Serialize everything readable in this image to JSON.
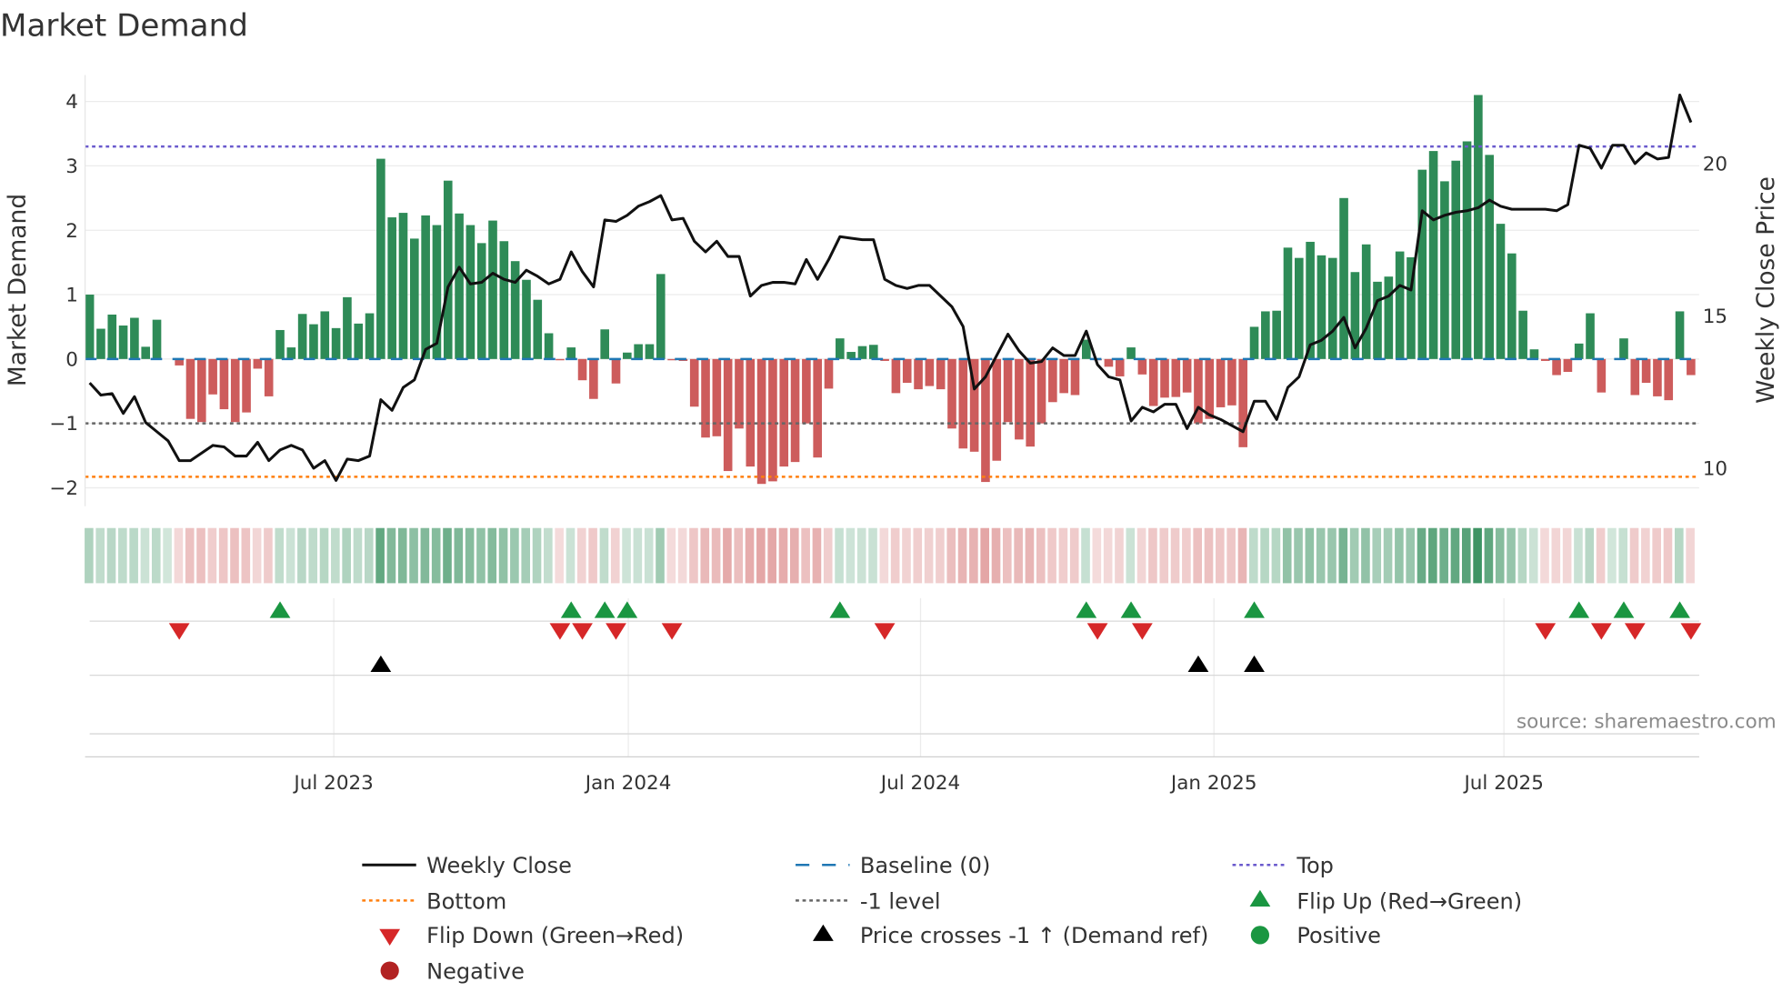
{
  "chart_data": {
    "type": "bar",
    "title": "Market Demand",
    "ylabel": "Market Demand",
    "y2label": "Weekly Close Price",
    "ylim": [
      -2.2,
      4.4
    ],
    "y2lim": [
      9.0,
      22.5
    ],
    "yticks": [
      {
        "v": 4,
        "label": "4"
      },
      {
        "v": 3,
        "label": "3"
      },
      {
        "v": 2,
        "label": "2"
      },
      {
        "v": 1,
        "label": "1"
      },
      {
        "v": 0,
        "label": "0"
      },
      {
        "v": -1,
        "label": "−1"
      },
      {
        "v": -2,
        "label": "−2"
      }
    ],
    "y2ticks": [
      {
        "v": 20,
        "label": "20"
      },
      {
        "v": 15,
        "label": "15"
      },
      {
        "v": 10,
        "label": "10"
      }
    ],
    "xticks": [
      {
        "index": 21.8,
        "label": "Jul 2023"
      },
      {
        "index": 48.1,
        "label": "Jan 2024"
      },
      {
        "index": 74.2,
        "label": "Jul 2024"
      },
      {
        "index": 100.4,
        "label": "Jan 2025"
      },
      {
        "index": 126.3,
        "label": "Jul 2025"
      }
    ],
    "start_date": "2023-01-27",
    "interval": "weekly",
    "levels": {
      "top": 3.3,
      "bottom": -1.83,
      "minus_one": -1,
      "baseline": 0
    },
    "demand": [
      1.0,
      0.47,
      0.69,
      0.52,
      0.64,
      0.19,
      0.61,
      0,
      -0.1,
      -0.93,
      -0.98,
      -0.55,
      -0.78,
      -0.98,
      -0.83,
      -0.15,
      -0.58,
      0.45,
      0.18,
      0.7,
      0.54,
      0.74,
      0.48,
      0.96,
      0.55,
      0.71,
      3.11,
      2.2,
      2.27,
      1.87,
      2.23,
      2.08,
      2.77,
      2.26,
      2.08,
      1.8,
      2.15,
      1.83,
      1.52,
      1.23,
      0.92,
      0.4,
      -0.02,
      0.18,
      -0.33,
      -0.62,
      0.46,
      -0.38,
      0.1,
      0.23,
      0.23,
      1.32,
      -0.02,
      -0.03,
      -0.74,
      -1.22,
      -1.2,
      -1.74,
      -1.08,
      -1.67,
      -1.94,
      -1.9,
      -1.67,
      -1.6,
      -1.0,
      -1.53,
      -0.46,
      0.32,
      0.11,
      0.2,
      0.22,
      -0.03,
      -0.53,
      -0.37,
      -0.47,
      -0.42,
      -0.47,
      -1.08,
      -1.39,
      -1.44,
      -1.91,
      -1.58,
      -0.98,
      -1.25,
      -1.36,
      -1.0,
      -0.67,
      -0.53,
      -0.56,
      0.3,
      -0.02,
      -0.12,
      -0.27,
      0.18,
      -0.24,
      -0.73,
      -0.6,
      -0.59,
      -0.52,
      -1.0,
      -0.93,
      -0.75,
      -0.72,
      -1.37,
      0.5,
      0.74,
      0.75,
      1.73,
      1.57,
      1.82,
      1.61,
      1.57,
      2.5,
      1.35,
      1.78,
      1.2,
      1.28,
      1.67,
      1.58,
      2.94,
      3.23,
      2.76,
      3.08,
      3.38,
      4.1,
      3.17,
      2.1,
      1.64,
      0.75,
      0.15,
      -0.03,
      -0.25,
      -0.2,
      0.24,
      0.71,
      -0.52,
      0,
      0.32,
      -0.56,
      -0.37,
      -0.58,
      -0.64,
      0.74,
      -0.25
    ],
    "price": [
      12.8,
      12.4,
      12.45,
      11.8,
      12.35,
      11.5,
      11.2,
      10.9,
      10.25,
      10.25,
      10.5,
      10.75,
      10.7,
      10.4,
      10.4,
      10.85,
      10.25,
      10.6,
      10.75,
      10.6,
      10.0,
      10.25,
      9.6,
      10.3,
      10.25,
      10.4,
      12.25,
      11.9,
      12.65,
      12.9,
      13.9,
      14.1,
      15.95,
      16.6,
      16.05,
      16.1,
      16.4,
      16.2,
      16.1,
      16.5,
      16.3,
      16.05,
      16.2,
      17.1,
      16.45,
      15.95,
      18.15,
      18.1,
      18.3,
      18.6,
      18.75,
      18.95,
      18.15,
      18.2,
      17.45,
      17.1,
      17.45,
      16.95,
      16.95,
      15.65,
      16.0,
      16.1,
      16.1,
      16.05,
      16.85,
      16.2,
      16.85,
      17.6,
      17.55,
      17.5,
      17.5,
      16.2,
      16.0,
      15.9,
      16.0,
      16.0,
      15.65,
      15.3,
      14.65,
      12.6,
      13.0,
      13.7,
      14.4,
      13.85,
      13.45,
      13.5,
      13.95,
      13.7,
      13.7,
      14.5,
      13.4,
      13.0,
      12.9,
      11.55,
      12.0,
      11.85,
      12.1,
      12.1,
      11.3,
      12.0,
      11.75,
      11.6,
      11.4,
      11.2,
      12.2,
      12.2,
      11.6,
      12.65,
      13.0,
      14.05,
      14.2,
      14.5,
      14.95,
      13.95,
      14.6,
      15.5,
      15.65,
      16.0,
      15.85,
      18.45,
      18.15,
      18.3,
      18.4,
      18.45,
      18.55,
      18.8,
      18.6,
      18.5,
      18.5,
      18.5,
      18.5,
      18.45,
      18.65,
      20.6,
      20.5,
      19.85,
      20.6,
      20.6,
      20.0,
      20.35,
      20.15,
      20.2,
      22.25,
      21.35
    ],
    "flip_up_indices": [
      17,
      43,
      46,
      48,
      67,
      89,
      93,
      104,
      133,
      137,
      142
    ],
    "flip_down_indices": [
      8,
      42,
      44,
      47,
      52,
      71,
      90,
      94,
      130,
      135,
      138,
      143
    ],
    "price_cross_indices": [
      26,
      99,
      104
    ],
    "colors": {
      "positive": "#2e8b57",
      "negative": "#cd5c5c",
      "price": "#111111",
      "baseline": "#1f77b4",
      "top": "#6a5acd",
      "bottom": "#ff7f0e",
      "minus_one": "#666666",
      "flip_up": "#1a9641",
      "flip_down": "#d62728",
      "cross": "#000000",
      "pos_marker": "#1a9641",
      "neg_marker": "#b22222"
    },
    "legend": [
      {
        "label": "Weekly Close",
        "kind": "line"
      },
      {
        "label": "Baseline (0)",
        "kind": "baseline"
      },
      {
        "label": "Top",
        "kind": "top"
      },
      {
        "label": "Bottom",
        "kind": "bottom"
      },
      {
        "label": "-1 level",
        "kind": "minus_one"
      },
      {
        "label": "Flip Up (Red→Green)",
        "kind": "flip_up"
      },
      {
        "label": "Flip Down (Green→Red)",
        "kind": "flip_down"
      },
      {
        "label": "Price crosses -1 ↑ (Demand ref)",
        "kind": "cross"
      },
      {
        "label": "Positive",
        "kind": "pos_marker"
      },
      {
        "label": "Negative",
        "kind": "neg_marker"
      }
    ],
    "source": "source: sharemaestro.com"
  }
}
